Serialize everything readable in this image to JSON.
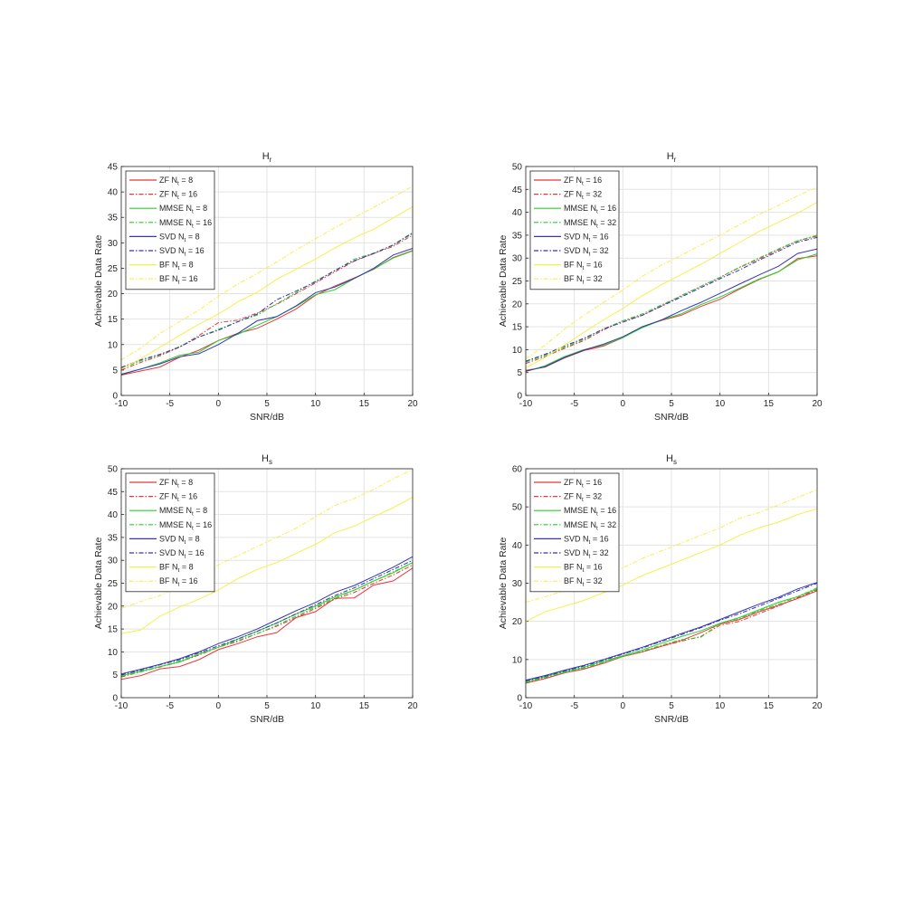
{
  "colors": {
    "ZF": "#e8383d",
    "MMSE": "#27d327",
    "SVD": "#3535b5",
    "BF": "#f5f04a",
    "axis": "#262626",
    "grid": "#e3e3e3"
  },
  "chart_data": [
    {
      "type": "line",
      "title": "H",
      "title_sub": "r",
      "xlabel": "SNR/dB",
      "ylabel": "Achievable Data Rate",
      "xlim": [
        -10,
        20
      ],
      "ylim": [
        0,
        45
      ],
      "xticks": [
        "-10",
        "-5",
        "0",
        "5",
        "10",
        "15",
        "20"
      ],
      "yticks": [
        "0",
        "5",
        "10",
        "15",
        "20",
        "25",
        "30",
        "35",
        "40",
        "45"
      ],
      "grid": true,
      "legend_position": "top-left",
      "x": [
        -10,
        -8,
        -6,
        -4,
        -2,
        0,
        2,
        4,
        6,
        8,
        10,
        12,
        14,
        16,
        18,
        20
      ],
      "series": [
        {
          "name": "ZF N",
          "sub": "t",
          "suffix": " = 8",
          "color": "ZF",
          "dash": "solid",
          "values": [
            4.0,
            4.8,
            5.6,
            7.5,
            8.9,
            10.8,
            12.2,
            13.2,
            15.0,
            17.0,
            19.7,
            21.5,
            23.1,
            24.8,
            27.1,
            28.5
          ]
        },
        {
          "name": "ZF N",
          "sub": "t",
          "suffix": " = 16",
          "color": "ZF",
          "dash": "dashdot",
          "values": [
            5.0,
            6.5,
            7.8,
            9.5,
            11.8,
            14.3,
            14.8,
            16.2,
            17.9,
            20.0,
            22.1,
            24.3,
            26.4,
            27.9,
            29.3,
            31.5
          ]
        },
        {
          "name": "MMSE N",
          "sub": "t",
          "suffix": " = 8",
          "color": "MMSE",
          "dash": "solid",
          "values": [
            4.2,
            5.2,
            6.4,
            7.9,
            8.5,
            10.8,
            12.0,
            13.8,
            15.5,
            17.5,
            19.8,
            20.8,
            23.0,
            24.9,
            27.0,
            28.4
          ]
        },
        {
          "name": "MMSE N",
          "sub": "t",
          "suffix": " = 16",
          "color": "MMSE",
          "dash": "dashdot",
          "values": [
            5.3,
            6.8,
            8.0,
            9.6,
            11.5,
            13.0,
            14.5,
            15.8,
            18.0,
            20.2,
            22.5,
            24.5,
            26.8,
            28.0,
            29.5,
            31.8
          ]
        },
        {
          "name": "SVD N",
          "sub": "t",
          "suffix": " = 8",
          "color": "SVD",
          "dash": "solid",
          "values": [
            4.1,
            5.2,
            6.2,
            7.6,
            8.2,
            10.0,
            12.2,
            14.7,
            15.5,
            17.6,
            20.2,
            21.3,
            23.0,
            25.0,
            27.6,
            28.9
          ]
        },
        {
          "name": "SVD N",
          "sub": "t",
          "suffix": " = 16",
          "color": "SVD",
          "dash": "dashdot",
          "values": [
            5.5,
            7.0,
            8.1,
            9.5,
            11.5,
            12.8,
            14.5,
            16.0,
            18.8,
            20.5,
            22.3,
            24.6,
            26.5,
            27.9,
            29.6,
            32.0
          ]
        },
        {
          "name": "BF N",
          "sub": "t",
          "suffix": " = 8",
          "color": "BF",
          "dash": "solid",
          "values": [
            5.2,
            7.2,
            9.5,
            11.8,
            14.0,
            16.0,
            18.4,
            20.3,
            22.8,
            24.8,
            26.8,
            29.0,
            31.0,
            32.7,
            34.9,
            37.1
          ]
        },
        {
          "name": "BF N",
          "sub": "t",
          "suffix": " = 16",
          "color": "BF",
          "dash": "dashdot",
          "values": [
            7.0,
            9.3,
            12.2,
            14.5,
            16.8,
            19.5,
            21.9,
            24.0,
            26.2,
            28.6,
            30.8,
            33.0,
            35.0,
            37.0,
            39.0,
            41.1
          ]
        }
      ]
    },
    {
      "type": "line",
      "title": "H",
      "title_sub": "r",
      "xlabel": "SNR/dB",
      "ylabel": "Achievable Data Rate",
      "xlim": [
        -10,
        20
      ],
      "ylim": [
        0,
        50
      ],
      "xticks": [
        "-10",
        "-5",
        "0",
        "5",
        "10",
        "15",
        "20"
      ],
      "yticks": [
        "0",
        "5",
        "10",
        "15",
        "20",
        "25",
        "30",
        "35",
        "40",
        "45",
        "50"
      ],
      "grid": true,
      "legend_position": "top-left",
      "x": [
        -10,
        -8,
        -6,
        -4,
        -2,
        0,
        2,
        4,
        6,
        8,
        10,
        12,
        14,
        16,
        18,
        20
      ],
      "series": [
        {
          "name": "ZF N",
          "sub": "t",
          "suffix": " = 16",
          "color": "ZF",
          "dash": "solid",
          "values": [
            5.5,
            6.2,
            8.2,
            9.8,
            10.8,
            12.6,
            15.0,
            16.4,
            17.5,
            19.4,
            21.0,
            23.2,
            25.3,
            27.0,
            29.9,
            30.5
          ]
        },
        {
          "name": "ZF N",
          "sub": "t",
          "suffix": " = 32",
          "color": "ZF",
          "dash": "dashdot",
          "values": [
            7.0,
            8.5,
            10.3,
            12.0,
            14.3,
            16.3,
            17.5,
            19.6,
            21.8,
            23.8,
            25.8,
            27.9,
            29.8,
            31.8,
            33.8,
            34.8
          ]
        },
        {
          "name": "MMSE N",
          "sub": "t",
          "suffix": " = 16",
          "color": "MMSE",
          "dash": "solid",
          "values": [
            5.2,
            6.5,
            8.5,
            10.0,
            11.0,
            12.6,
            14.8,
            16.5,
            17.8,
            19.8,
            21.5,
            23.4,
            25.4,
            27.0,
            29.6,
            30.9
          ]
        },
        {
          "name": "MMSE N",
          "sub": "t",
          "suffix": " = 32",
          "color": "MMSE",
          "dash": "dashdot",
          "values": [
            7.3,
            8.8,
            10.5,
            12.3,
            14.5,
            16.3,
            17.8,
            19.8,
            21.7,
            23.8,
            25.8,
            28.0,
            30.0,
            32.0,
            33.8,
            35.0
          ]
        },
        {
          "name": "SVD N",
          "sub": "t",
          "suffix": " = 16",
          "color": "SVD",
          "dash": "solid",
          "values": [
            5.3,
            6.3,
            8.3,
            9.9,
            11.2,
            12.8,
            15.0,
            16.5,
            18.5,
            20.3,
            22.3,
            24.3,
            26.3,
            28.2,
            31.0,
            32.0
          ]
        },
        {
          "name": "SVD N",
          "sub": "t",
          "suffix": " = 32",
          "color": "SVD",
          "dash": "dashdot",
          "values": [
            7.5,
            9.0,
            10.8,
            12.5,
            14.5,
            16.0,
            17.5,
            19.5,
            21.5,
            23.5,
            25.5,
            27.4,
            29.5,
            31.5,
            33.5,
            34.5
          ]
        },
        {
          "name": "BF N",
          "sub": "t",
          "suffix": " = 16",
          "color": "BF",
          "dash": "solid",
          "values": [
            6.0,
            8.3,
            11.0,
            13.8,
            16.5,
            19.0,
            21.8,
            24.2,
            26.4,
            28.6,
            31.0,
            33.4,
            35.8,
            37.8,
            39.8,
            42.2
          ]
        },
        {
          "name": "BF N",
          "sub": "t",
          "suffix": " = 32",
          "color": "BF",
          "dash": "dashdot",
          "values": [
            8.0,
            11.0,
            14.5,
            17.5,
            20.3,
            23.0,
            26.0,
            28.5,
            30.6,
            32.8,
            35.0,
            37.3,
            39.5,
            41.5,
            43.6,
            45.5
          ]
        }
      ]
    },
    {
      "type": "line",
      "title": "H",
      "title_sub": "s",
      "xlabel": "SNR/dB",
      "ylabel": "Achievable Data Rate",
      "xlim": [
        -10,
        20
      ],
      "ylim": [
        0,
        50
      ],
      "xticks": [
        "-10",
        "-5",
        "0",
        "5",
        "10",
        "15",
        "20"
      ],
      "yticks": [
        "0",
        "5",
        "10",
        "15",
        "20",
        "25",
        "30",
        "35",
        "40",
        "45",
        "50"
      ],
      "grid": true,
      "legend_position": "top-left",
      "x": [
        -10,
        -8,
        -6,
        -4,
        -2,
        0,
        2,
        4,
        6,
        8,
        10,
        12,
        14,
        16,
        18,
        20
      ],
      "series": [
        {
          "name": "ZF N",
          "sub": "t",
          "suffix": " = 8",
          "color": "ZF",
          "dash": "solid",
          "values": [
            4.0,
            4.8,
            6.3,
            6.8,
            8.3,
            10.5,
            11.8,
            13.3,
            14.2,
            17.5,
            18.8,
            21.7,
            21.8,
            24.6,
            25.5,
            28.3
          ]
        },
        {
          "name": "ZF N",
          "sub": "t",
          "suffix": " = 16",
          "color": "ZF",
          "dash": "dashdot",
          "values": [
            4.5,
            5.7,
            6.7,
            7.8,
            9.3,
            11.0,
            12.3,
            14.0,
            15.6,
            17.5,
            19.5,
            21.5,
            23.0,
            25.0,
            26.8,
            29.0
          ]
        },
        {
          "name": "MMSE N",
          "sub": "t",
          "suffix": " = 8",
          "color": "MMSE",
          "dash": "solid",
          "values": [
            4.8,
            5.8,
            6.8,
            7.8,
            9.5,
            11.0,
            12.8,
            14.5,
            16.3,
            18.3,
            20.0,
            22.0,
            23.5,
            25.5,
            27.3,
            29.5
          ]
        },
        {
          "name": "MMSE N",
          "sub": "t",
          "suffix": " = 16",
          "color": "MMSE",
          "dash": "dashdot",
          "values": [
            4.7,
            5.6,
            6.8,
            8.0,
            9.5,
            11.0,
            12.5,
            14.0,
            15.8,
            17.8,
            19.8,
            21.7,
            23.5,
            25.5,
            27.5,
            29.5
          ]
        },
        {
          "name": "SVD N",
          "sub": "t",
          "suffix": " = 8",
          "color": "SVD",
          "dash": "solid",
          "values": [
            5.2,
            6.2,
            7.3,
            8.5,
            10.0,
            11.8,
            13.3,
            15.0,
            17.0,
            19.0,
            20.8,
            23.0,
            24.5,
            26.5,
            28.5,
            30.8
          ]
        },
        {
          "name": "SVD N",
          "sub": "t",
          "suffix": " = 16",
          "color": "SVD",
          "dash": "dashdot",
          "values": [
            5.0,
            6.0,
            7.2,
            8.3,
            9.8,
            11.3,
            12.8,
            14.5,
            16.3,
            18.3,
            20.3,
            22.3,
            24.0,
            26.0,
            28.0,
            30.0
          ]
        },
        {
          "name": "BF N",
          "sub": "t",
          "suffix": " = 8",
          "color": "BF",
          "dash": "solid",
          "values": [
            14.0,
            14.8,
            17.8,
            19.8,
            21.5,
            23.5,
            26.0,
            28.0,
            29.5,
            31.5,
            33.5,
            36.0,
            37.5,
            39.5,
            41.5,
            43.8
          ]
        },
        {
          "name": "BF N",
          "sub": "t",
          "suffix": " = 16",
          "color": "BF",
          "dash": "dashdot",
          "values": [
            19.5,
            21.0,
            22.3,
            24.5,
            26.5,
            29.0,
            31.0,
            33.0,
            35.0,
            37.0,
            39.5,
            42.0,
            43.5,
            45.5,
            47.8,
            49.8
          ]
        }
      ]
    },
    {
      "type": "line",
      "title": "H",
      "title_sub": "s",
      "xlabel": "SNR/dB",
      "ylabel": "Achievable Data Rate",
      "xlim": [
        -10,
        20
      ],
      "ylim": [
        0,
        60
      ],
      "xticks": [
        "-10",
        "-5",
        "0",
        "5",
        "10",
        "15",
        "20"
      ],
      "yticks": [
        "0",
        "10",
        "20",
        "30",
        "40",
        "50",
        "60"
      ],
      "grid": true,
      "legend_position": "top-left",
      "x": [
        -10,
        -8,
        -6,
        -4,
        -2,
        0,
        2,
        4,
        6,
        8,
        10,
        12,
        14,
        16,
        18,
        20
      ],
      "series": [
        {
          "name": "ZF N",
          "sub": "t",
          "suffix": " = 16",
          "color": "ZF",
          "dash": "solid",
          "values": [
            3.8,
            5.0,
            6.5,
            7.5,
            9.0,
            10.8,
            12.0,
            13.5,
            15.0,
            17.0,
            19.3,
            20.5,
            22.5,
            24.2,
            26.0,
            28.0
          ]
        },
        {
          "name": "ZF N",
          "sub": "t",
          "suffix": " = 32",
          "color": "ZF",
          "dash": "dashdot",
          "values": [
            4.0,
            5.2,
            6.5,
            7.8,
            9.2,
            10.8,
            12.0,
            13.5,
            14.8,
            16.0,
            19.0,
            20.0,
            22.0,
            24.0,
            26.2,
            28.3
          ]
        },
        {
          "name": "MMSE N",
          "sub": "t",
          "suffix": " = 16",
          "color": "MMSE",
          "dash": "solid",
          "values": [
            4.2,
            5.5,
            6.8,
            8.0,
            9.5,
            11.0,
            12.5,
            14.3,
            16.0,
            17.5,
            19.5,
            21.0,
            23.0,
            25.0,
            26.5,
            28.5
          ]
        },
        {
          "name": "MMSE N",
          "sub": "t",
          "suffix": " = 32",
          "color": "MMSE",
          "dash": "dashdot",
          "values": [
            4.0,
            5.3,
            6.6,
            7.8,
            9.2,
            10.8,
            12.2,
            13.8,
            15.2,
            15.8,
            19.5,
            20.8,
            22.8,
            24.5,
            26.5,
            28.8
          ]
        },
        {
          "name": "SVD N",
          "sub": "t",
          "suffix": " = 16",
          "color": "SVD",
          "dash": "solid",
          "values": [
            4.6,
            5.8,
            7.2,
            8.5,
            10.0,
            11.6,
            13.2,
            15.0,
            16.8,
            18.5,
            20.5,
            22.5,
            24.5,
            26.3,
            28.5,
            30.2
          ]
        },
        {
          "name": "SVD N",
          "sub": "t",
          "suffix": " = 32",
          "color": "SVD",
          "dash": "dashdot",
          "values": [
            4.4,
            5.6,
            7.0,
            8.3,
            9.8,
            11.4,
            13.0,
            14.8,
            16.5,
            18.3,
            20.3,
            22.0,
            24.0,
            26.0,
            28.0,
            30.0
          ]
        },
        {
          "name": "BF N",
          "sub": "t",
          "suffix": " = 16",
          "color": "BF",
          "dash": "solid",
          "values": [
            20.0,
            22.5,
            24.0,
            25.5,
            27.5,
            29.5,
            32.0,
            34.0,
            36.0,
            38.0,
            40.0,
            42.5,
            44.5,
            46.0,
            48.0,
            49.5
          ]
        },
        {
          "name": "BF N",
          "sub": "t",
          "suffix": " = 32",
          "color": "BF",
          "dash": "dashdot",
          "values": [
            25.0,
            26.5,
            28.0,
            30.0,
            32.0,
            34.0,
            36.5,
            38.5,
            40.5,
            42.5,
            44.5,
            47.0,
            48.5,
            50.5,
            52.5,
            54.5
          ]
        }
      ]
    }
  ]
}
